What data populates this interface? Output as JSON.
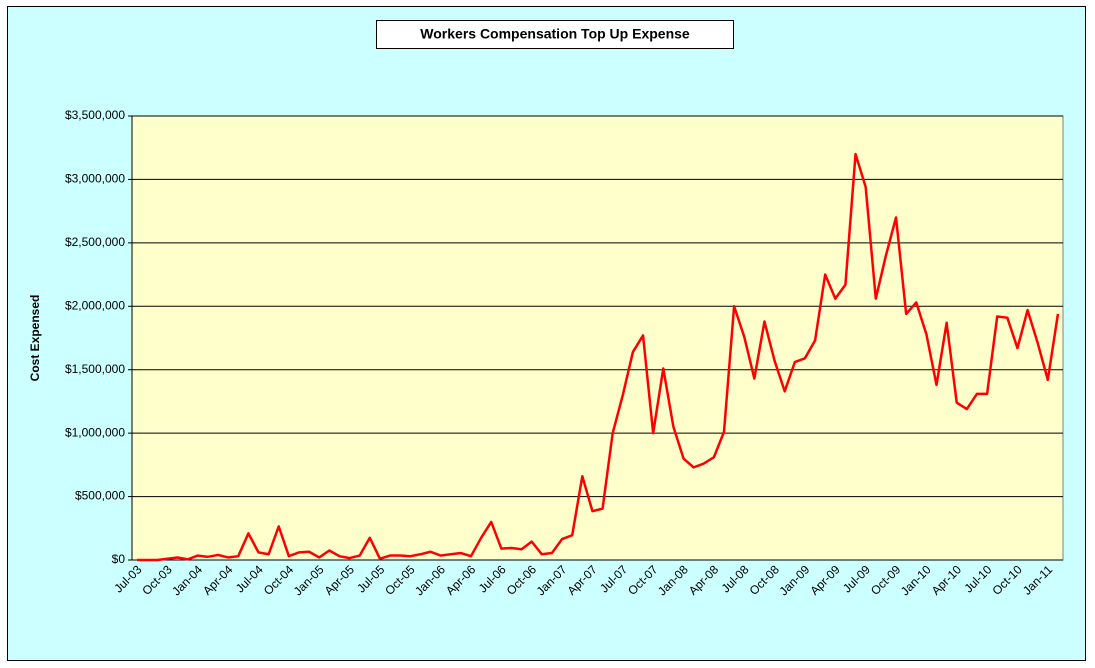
{
  "chart_data": {
    "type": "line",
    "title": "Workers Compensation Top Up Expense",
    "y_label": "Cost Expensed",
    "categories": [
      "Jul-03",
      null,
      null,
      "Oct-03",
      null,
      null,
      "Jan-04",
      null,
      null,
      "Apr-04",
      null,
      null,
      "Jul-04",
      null,
      null,
      "Oct-04",
      null,
      null,
      "Jan-05",
      null,
      null,
      "Apr-05",
      null,
      null,
      "Jul-05",
      null,
      null,
      "Oct-05",
      null,
      null,
      "Jan-06",
      null,
      null,
      "Apr-06",
      null,
      null,
      "Jul-06",
      null,
      null,
      "Oct-06",
      null,
      null,
      "Jan-07",
      null,
      null,
      "Apr-07",
      null,
      null,
      "Jul-07",
      null,
      null,
      "Oct-07",
      null,
      null,
      "Jan-08",
      null,
      null,
      "Apr-08",
      null,
      null,
      "Jul-08",
      null,
      null,
      "Oct-08",
      null,
      null,
      "Jan-09",
      null,
      null,
      "Apr-09",
      null,
      null,
      "Jul-09",
      null,
      null,
      "Oct-09",
      null,
      null,
      "Jan-10",
      null,
      null,
      "Apr-10",
      null,
      null,
      "Jul-10",
      null,
      null,
      "Oct-10",
      null,
      null,
      "Jan-11",
      null
    ],
    "series": [
      {
        "name": "Cost Expensed",
        "color": "#ff0000",
        "values": [
          0,
          0,
          0,
          10000,
          20000,
          5000,
          35000,
          25000,
          40000,
          20000,
          30000,
          210000,
          60000,
          45000,
          265000,
          30000,
          60000,
          65000,
          20000,
          75000,
          30000,
          15000,
          35000,
          175000,
          10000,
          35000,
          35000,
          30000,
          45000,
          65000,
          35000,
          45000,
          55000,
          30000,
          175000,
          300000,
          90000,
          95000,
          85000,
          145000,
          45000,
          55000,
          165000,
          195000,
          660000,
          385000,
          405000,
          1000000,
          1300000,
          1640000,
          1770000,
          1000000,
          1510000,
          1050000,
          800000,
          730000,
          760000,
          810000,
          1010000,
          2000000,
          1760000,
          1430000,
          1880000,
          1570000,
          1330000,
          1560000,
          1590000,
          1730000,
          2250000,
          2060000,
          2170000,
          3200000,
          2940000,
          2060000,
          2400000,
          2700000,
          1940000,
          2030000,
          1780000,
          1380000,
          1870000,
          1240000,
          1190000,
          1310000,
          1310000,
          1920000,
          1910000,
          1670000,
          1970000,
          1710000,
          1420000,
          1940000
        ]
      }
    ],
    "ylim": [
      0,
      3500000
    ],
    "yticks": [
      {
        "value": 0,
        "label": "$0"
      },
      {
        "value": 500000,
        "label": "$500,000"
      },
      {
        "value": 1000000,
        "label": "$1,000,000"
      },
      {
        "value": 1500000,
        "label": "$1,500,000"
      },
      {
        "value": 2000000,
        "label": "$2,000,000"
      },
      {
        "value": 2500000,
        "label": "$2,500,000"
      },
      {
        "value": 3000000,
        "label": "$3,000,000"
      },
      {
        "value": 3500000,
        "label": "$3,500,000"
      }
    ],
    "grid": true,
    "plot_color": "#ffffcc",
    "background_color": "#ccffff"
  }
}
